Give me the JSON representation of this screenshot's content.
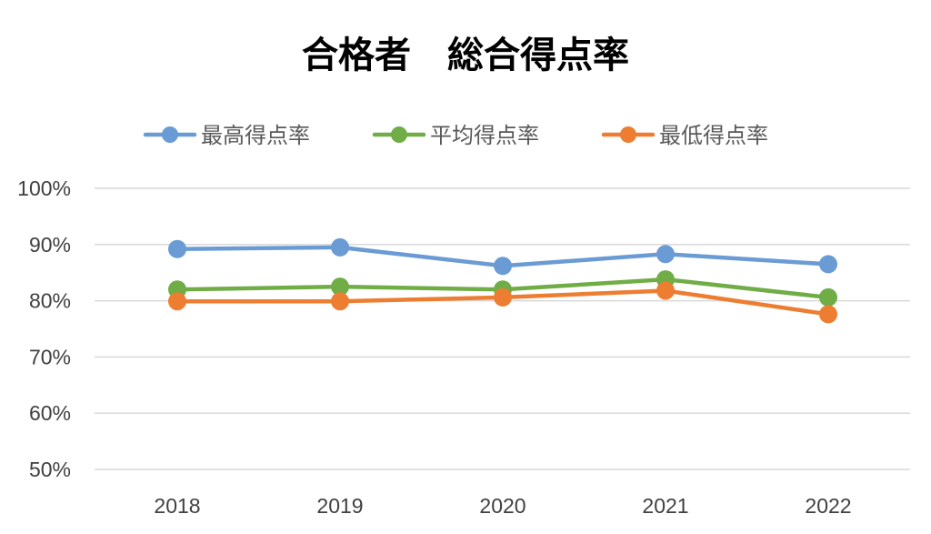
{
  "chart_data": {
    "type": "line",
    "title": "合格者　総合得点率",
    "categories": [
      "2018",
      "2019",
      "2020",
      "2021",
      "2022"
    ],
    "series": [
      {
        "name": "最高得点率",
        "color": "#6A9BD4",
        "values": [
          89.2,
          89.5,
          86.2,
          88.3,
          86.5
        ]
      },
      {
        "name": "平均得点率",
        "color": "#70AD47",
        "values": [
          82.0,
          82.5,
          82.0,
          83.8,
          80.6
        ]
      },
      {
        "name": "最低得点率",
        "color": "#ED7D31",
        "values": [
          79.9,
          79.9,
          80.6,
          81.8,
          77.6
        ]
      }
    ],
    "y_ticks": [
      "50%",
      "60%",
      "70%",
      "80%",
      "90%",
      "100%"
    ],
    "ylim": [
      50,
      100
    ],
    "xlabel": "",
    "ylabel": "",
    "grid": true,
    "legend_position": "top"
  }
}
